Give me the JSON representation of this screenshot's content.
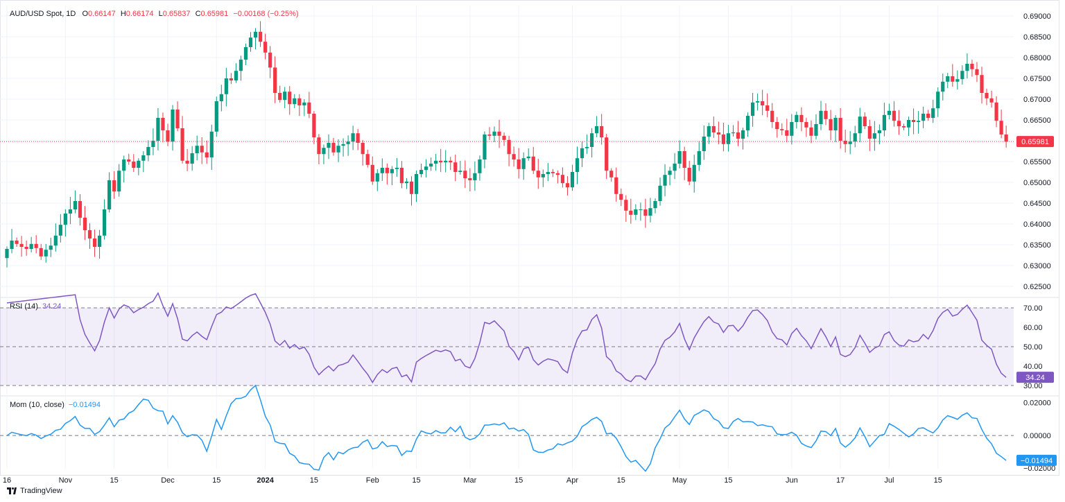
{
  "header": {
    "symbol": "AUD/USD Spot, 1D",
    "o_label": "O",
    "o": "0.66147",
    "h_label": "H",
    "h": "0.66174",
    "l_label": "L",
    "l": "0.65837",
    "c_label": "C",
    "c": "0.65981",
    "change": "−0.00168 (−0.25%)"
  },
  "rsi_title": {
    "label": "RSI (14)",
    "value": "34.24"
  },
  "mom_title": {
    "label": "Mom (10, close)",
    "value": "−0.01494"
  },
  "brand": "TradingView",
  "colors": {
    "up": "#089981",
    "down": "#f23645",
    "rsi": "#7e57c2",
    "mom": "#2196f3",
    "grid": "#f0f3fa"
  },
  "chart_data": [
    {
      "type": "candlestick",
      "ylim": [
        0.6225,
        0.6925
      ],
      "y_ticks": [
        "0.62500",
        "0.63000",
        "0.63500",
        "0.64000",
        "0.64500",
        "0.65000",
        "0.65500",
        "0.66000",
        "0.66500",
        "0.67000",
        "0.67500",
        "0.68000",
        "0.68500",
        "0.69000"
      ],
      "last_price": "0.65981",
      "x_ticks": [
        {
          "label": "16",
          "bar": 0
        },
        {
          "label": "Nov",
          "bar": 12
        },
        {
          "label": "15",
          "bar": 22
        },
        {
          "label": "Dec",
          "bar": 33
        },
        {
          "label": "15",
          "bar": 43
        },
        {
          "label": "2024",
          "bar": 53
        },
        {
          "label": "15",
          "bar": 63
        },
        {
          "label": "Feb",
          "bar": 75
        },
        {
          "label": "15",
          "bar": 84
        },
        {
          "label": "Mar",
          "bar": 95
        },
        {
          "label": "15",
          "bar": 105
        },
        {
          "label": "Apr",
          "bar": 116
        },
        {
          "label": "15",
          "bar": 126
        },
        {
          "label": "May",
          "bar": 138
        },
        {
          "label": "15",
          "bar": 148
        },
        {
          "label": "Jun",
          "bar": 161
        },
        {
          "label": "17",
          "bar": 171
        },
        {
          "label": "Jul",
          "bar": 181
        },
        {
          "label": "15",
          "bar": 191
        }
      ],
      "close": [
        0.634,
        0.636,
        0.6352,
        0.6345,
        0.634,
        0.6352,
        0.6342,
        0.6322,
        0.6338,
        0.6348,
        0.6372,
        0.6398,
        0.6425,
        0.6435,
        0.6455,
        0.6415,
        0.6385,
        0.6365,
        0.6345,
        0.6372,
        0.6435,
        0.6505,
        0.6478,
        0.6528,
        0.6555,
        0.655,
        0.6535,
        0.6552,
        0.6565,
        0.6585,
        0.66,
        0.6655,
        0.6625,
        0.6598,
        0.6675,
        0.663,
        0.6552,
        0.6545,
        0.657,
        0.6588,
        0.6572,
        0.656,
        0.6622,
        0.6695,
        0.6712,
        0.675,
        0.6745,
        0.6768,
        0.6795,
        0.6825,
        0.6848,
        0.6862,
        0.6838,
        0.6812,
        0.6776,
        0.6715,
        0.6698,
        0.6718,
        0.6688,
        0.6702,
        0.6685,
        0.6692,
        0.6665,
        0.6608,
        0.6568,
        0.6583,
        0.6595,
        0.6572,
        0.6588,
        0.6592,
        0.6598,
        0.6618,
        0.6595,
        0.6568,
        0.6542,
        0.6502,
        0.6522,
        0.6535,
        0.6522,
        0.6532,
        0.6535,
        0.6498,
        0.6502,
        0.6472,
        0.652,
        0.653,
        0.6538,
        0.6545,
        0.6552,
        0.6548,
        0.6552,
        0.6548,
        0.6525,
        0.6528,
        0.651,
        0.6505,
        0.6522,
        0.6555,
        0.6615,
        0.6612,
        0.6622,
        0.6612,
        0.6602,
        0.6568,
        0.6555,
        0.6532,
        0.6558,
        0.6562,
        0.6528,
        0.6512,
        0.652,
        0.6525,
        0.6522,
        0.6518,
        0.6498,
        0.6488,
        0.6525,
        0.6558,
        0.6582,
        0.6585,
        0.6618,
        0.6635,
        0.6608,
        0.6528,
        0.6512,
        0.6472,
        0.6458,
        0.6432,
        0.6422,
        0.6435,
        0.6435,
        0.642,
        0.6438,
        0.6455,
        0.6492,
        0.6518,
        0.6528,
        0.6545,
        0.6575,
        0.6535,
        0.6502,
        0.6542,
        0.6575,
        0.661,
        0.6635,
        0.662,
        0.6615,
        0.6592,
        0.6618,
        0.662,
        0.6605,
        0.6625,
        0.666,
        0.6692,
        0.6695,
        0.6685,
        0.6672,
        0.6645,
        0.6628,
        0.6625,
        0.6612,
        0.6645,
        0.6662,
        0.6645,
        0.6632,
        0.6612,
        0.664,
        0.6672,
        0.6652,
        0.6625,
        0.6655,
        0.66,
        0.6592,
        0.6598,
        0.6618,
        0.6658,
        0.6635,
        0.6605,
        0.6618,
        0.6625,
        0.6662,
        0.6672,
        0.6648,
        0.6635,
        0.6632,
        0.665,
        0.6645,
        0.6648,
        0.6665,
        0.6655,
        0.6678,
        0.6718,
        0.6742,
        0.6755,
        0.6742,
        0.6748,
        0.6768,
        0.6785,
        0.6772,
        0.6758,
        0.6715,
        0.6702,
        0.6692,
        0.6648,
        0.6615,
        0.6598
      ],
      "bars_estimated_from_pixels": true
    },
    {
      "type": "line",
      "name": "RSI (14)",
      "ylim": [
        25,
        75
      ],
      "y_ticks": [
        "70.00",
        "60.00",
        "50.00",
        "40.00",
        "30.00"
      ],
      "band": [
        30,
        70
      ],
      "midline": 50,
      "last_value": "34.24"
    },
    {
      "type": "line",
      "name": "Mom (10, close)",
      "ylim": [
        -0.02,
        0.0235
      ],
      "y_ticks": [
        "0.02000",
        "0.00000",
        "−0.02000"
      ],
      "zero_line": 0,
      "last_value": "−0.01494"
    }
  ]
}
